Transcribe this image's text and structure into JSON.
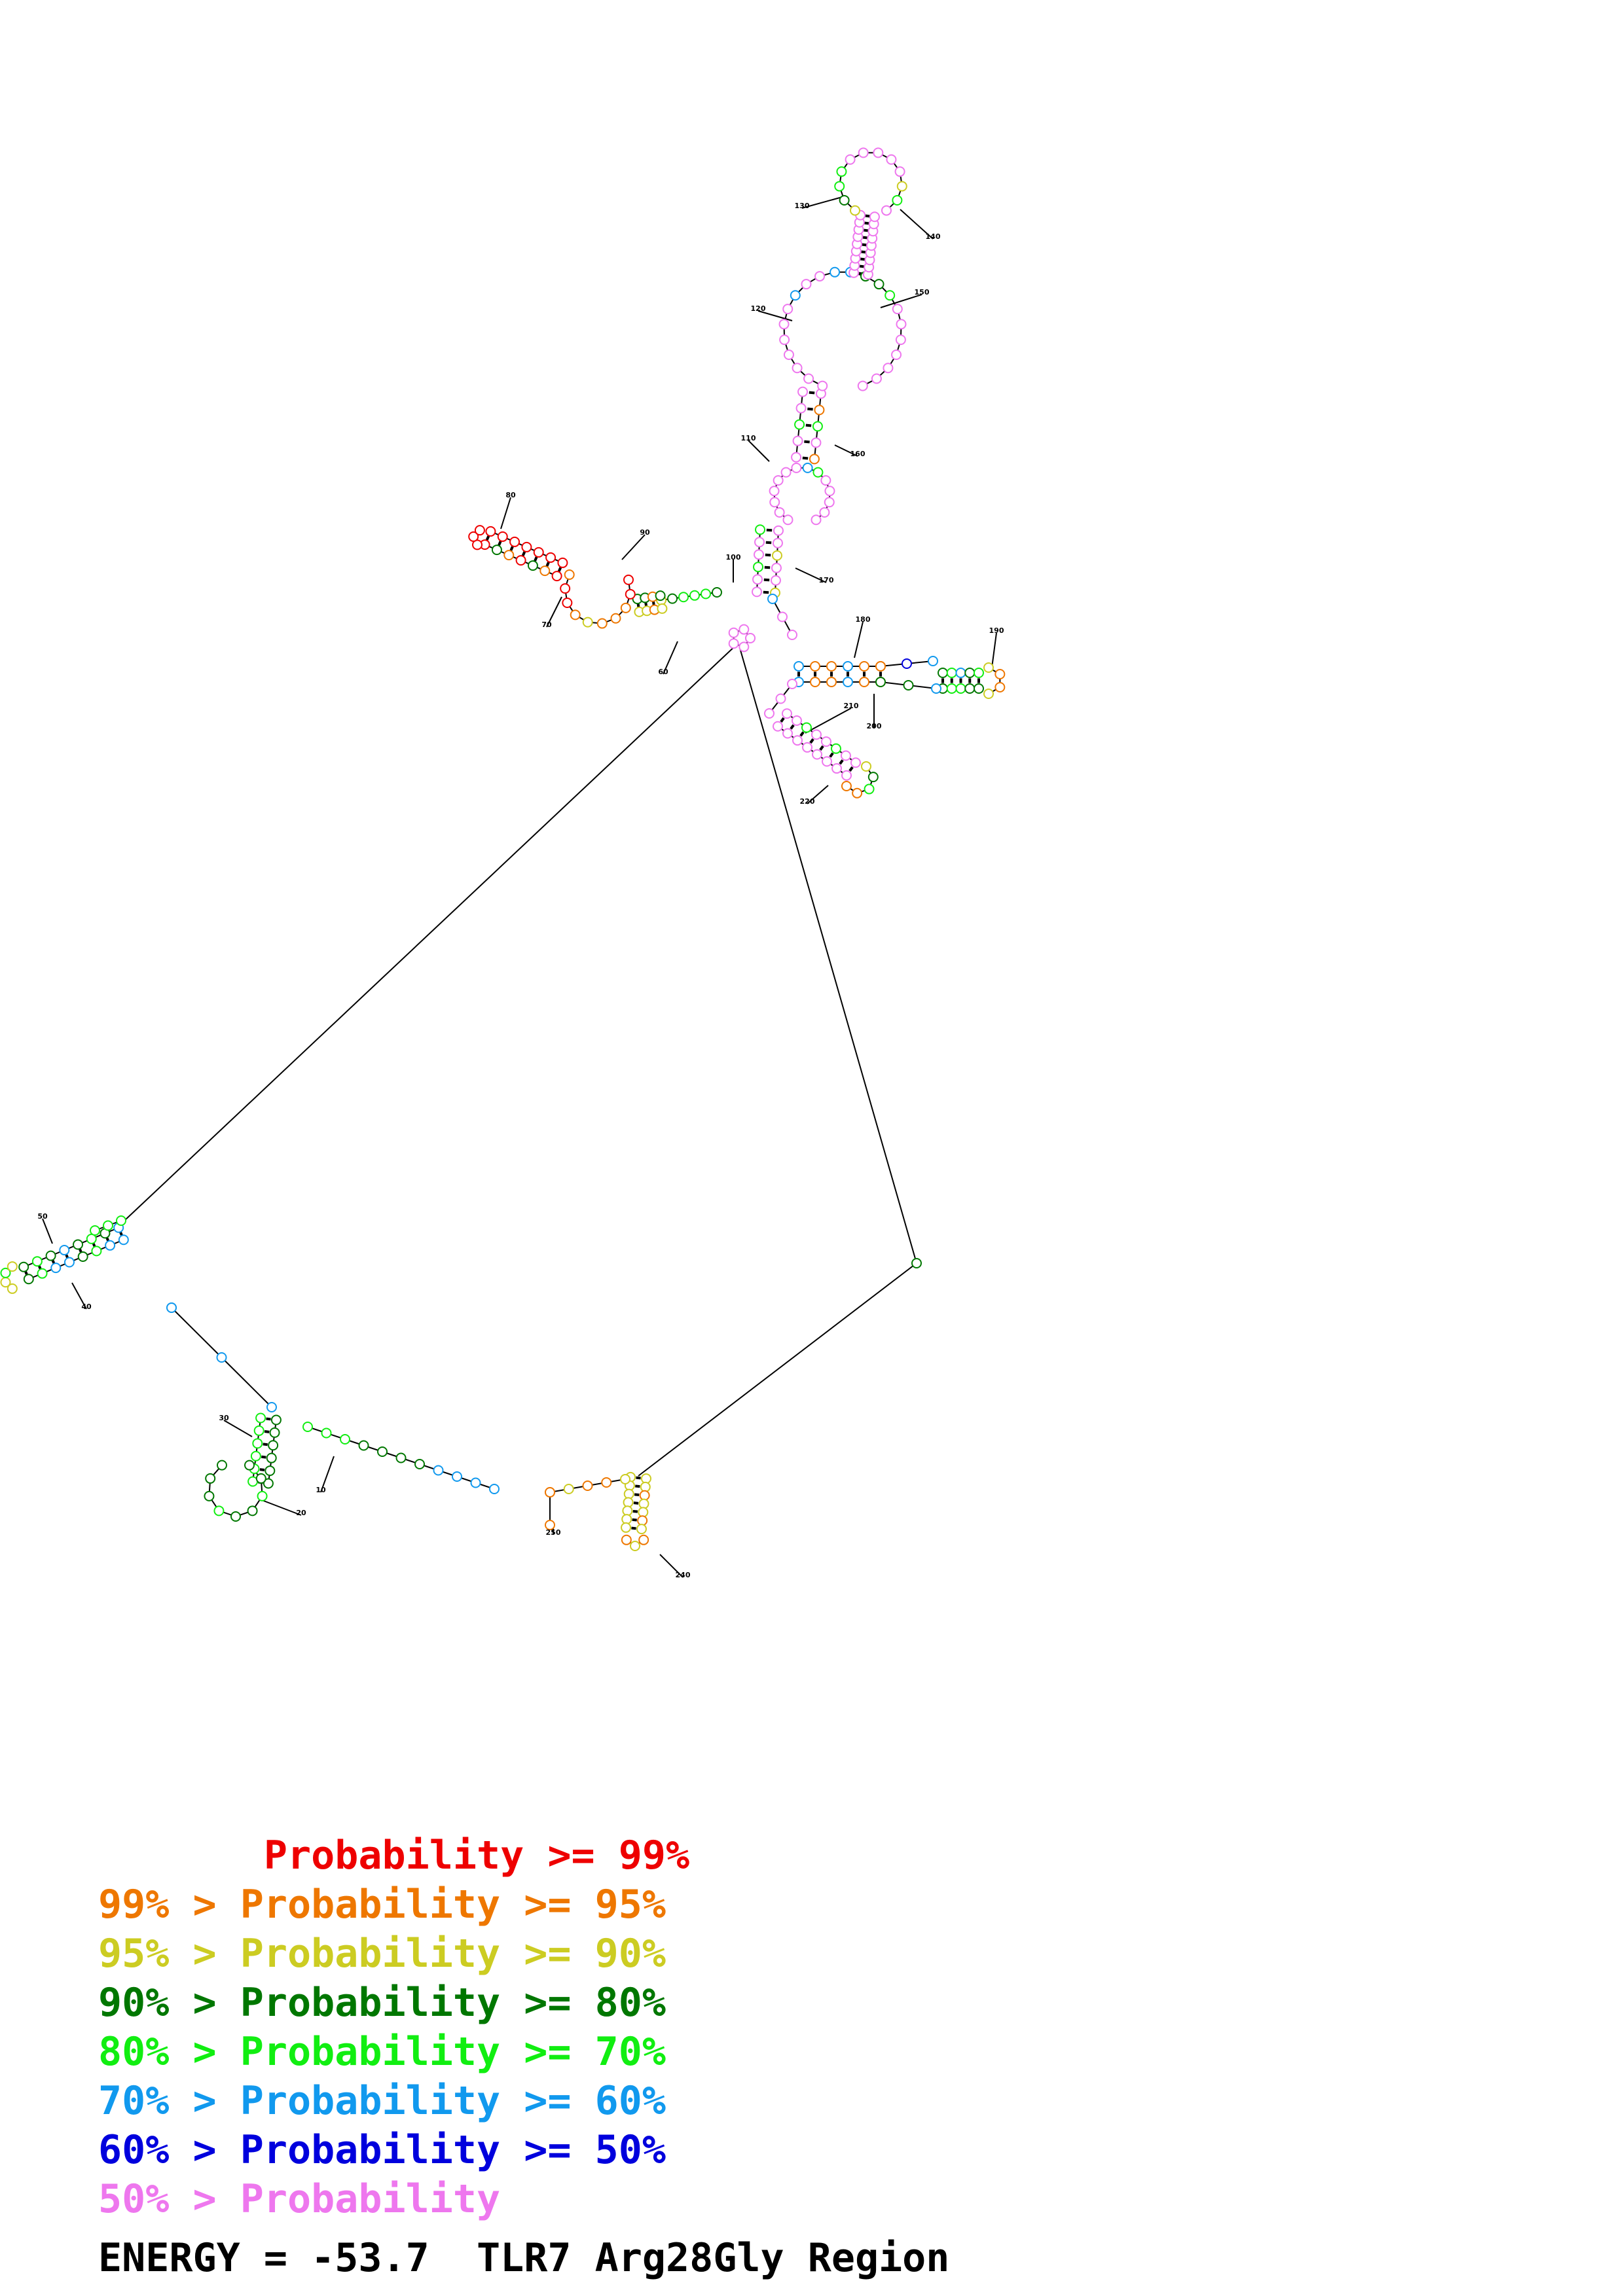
{
  "colors": {
    "p99": "#ee0000",
    "p95": "#ee7700",
    "p90": "#cccc22",
    "p80": "#007700",
    "p70": "#11ee11",
    "p60": "#1199ee",
    "p50": "#0000dd",
    "plow": "#ee77ee"
  },
  "legend": [
    {
      "level": "p99",
      "text": "       Probability >= 99%"
    },
    {
      "level": "p95",
      "text": "99% > Probability >= 95%"
    },
    {
      "level": "p90",
      "text": "95% > Probability >= 90%"
    },
    {
      "level": "p80",
      "text": "90% > Probability >= 80%"
    },
    {
      "level": "p70",
      "text": "80% > Probability >= 70%"
    },
    {
      "level": "p60",
      "text": "70% > Probability >= 60%"
    },
    {
      "level": "p50",
      "text": "60% > Probability >= 50%"
    },
    {
      "level": "plow",
      "text": "50% > Probability"
    }
  ],
  "energy_label": "ENERGY = -53.7  TLR7 Arg28Gly Region",
  "structure": {
    "index_labels": [
      "10",
      "20",
      "30",
      "40",
      "50",
      "60",
      "70",
      "80",
      "90",
      "100",
      "110",
      "120",
      "130",
      "140",
      "150",
      "160",
      "170",
      "180",
      "190",
      "200",
      "210",
      "220",
      "240",
      "250"
    ]
  }
}
